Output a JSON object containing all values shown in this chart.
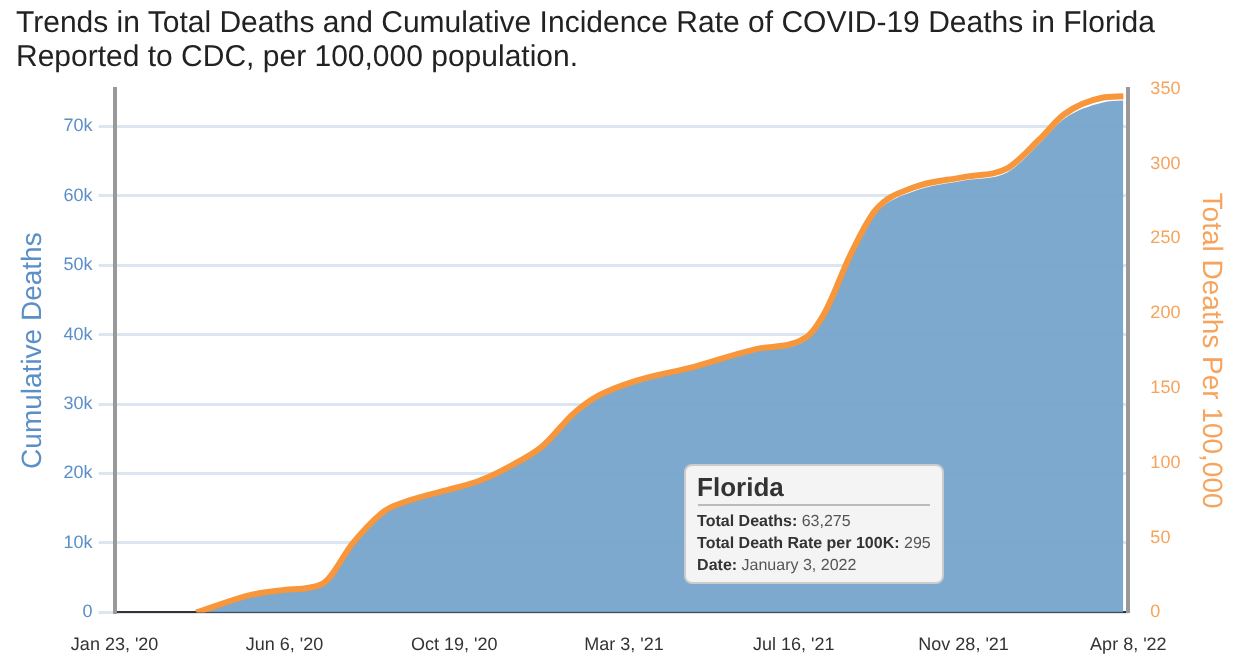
{
  "chart_data": {
    "type": "area",
    "title": "Trends in Total Deaths and Cumulative Incidence Rate of COVID-19 Deaths in Florida Reported to CDC, per 100,000 population.",
    "ylabel": "Cumulative Deaths",
    "y2label": "Total Deaths Per 100,000",
    "x": [
      "2020-03-28",
      "2020-05-12",
      "2020-06-06",
      "2020-07-06",
      "2020-07-31",
      "2020-08-25",
      "2020-09-14",
      "2020-10-19",
      "2020-11-08",
      "2020-12-03",
      "2020-12-28",
      "2021-01-22",
      "2021-02-11",
      "2021-03-13",
      "2021-04-27",
      "2021-06-16",
      "2021-07-26",
      "2021-08-10",
      "2021-08-30",
      "2021-09-19",
      "2021-10-19",
      "2021-11-28",
      "2022-01-02",
      "2022-01-27",
      "2022-02-16",
      "2022-03-18",
      "2022-04-04"
    ],
    "series": [
      {
        "color": "#74a3cb",
        "values": [
          0,
          2500,
          3200,
          4100,
          10000,
          14600,
          16000,
          17800,
          18700,
          21000,
          23700,
          28300,
          31000,
          33000,
          35100,
          37600,
          39200,
          42800,
          51000,
          57400,
          60600,
          62200,
          63400,
          67500,
          71100,
          73400,
          73700
        ]
      },
      {
        "type": "line",
        "axis": "y2",
        "color": "#f7963a",
        "values": [
          0,
          12,
          15,
          19,
          47,
          68,
          75,
          83,
          88,
          98,
          111,
          133,
          145,
          155,
          164,
          176,
          184,
          201,
          239,
          269,
          284,
          291,
          297,
          316,
          333,
          344,
          345
        ]
      }
    ],
    "xlim": [
      "2020-01-23",
      "2022-04-08"
    ],
    "xticks": [
      {
        "value": "2020-01-23",
        "label": "Jan 23, '20"
      },
      {
        "value": "2020-06-06",
        "label": "Jun 6, '20"
      },
      {
        "value": "2020-10-19",
        "label": "Oct 19, '20"
      },
      {
        "value": "2021-03-03",
        "label": "Mar 3, '21"
      },
      {
        "value": "2021-07-16",
        "label": "Jul 16, '21"
      },
      {
        "value": "2021-11-28",
        "label": "Nov 28, '21"
      },
      {
        "value": "2022-04-08",
        "label": "Apr 8, '22"
      }
    ],
    "ylim": [
      0,
      75400
    ],
    "yticks": [
      {
        "value": 0,
        "label": "0"
      },
      {
        "value": 10000,
        "label": "10k"
      },
      {
        "value": 20000,
        "label": "20k"
      },
      {
        "value": 30000,
        "label": "30k"
      },
      {
        "value": 40000,
        "label": "40k"
      },
      {
        "value": 50000,
        "label": "50k"
      },
      {
        "value": 60000,
        "label": "60k"
      },
      {
        "value": 70000,
        "label": "70k"
      }
    ],
    "y2lim": [
      0,
      350
    ],
    "y2ticks": [
      0,
      50,
      100,
      150,
      200,
      250,
      300,
      350
    ],
    "grid": "y",
    "annotations": [
      "Florida",
      "Total Deaths: 63,275",
      "Total Death Rate per 100K: 295",
      "Date: January 3, 2022"
    ]
  }
}
